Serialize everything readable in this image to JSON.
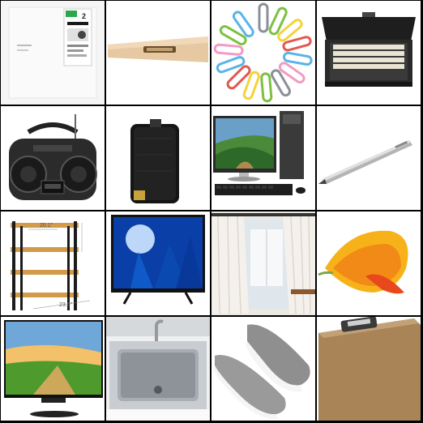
{
  "grid": {
    "tiles": [
      {
        "name": "sticky-notes-package",
        "label_text": "2"
      },
      {
        "name": "hammer-handle"
      },
      {
        "name": "paper-clips"
      },
      {
        "name": "file-box"
      },
      {
        "name": "boombox"
      },
      {
        "name": "speaker"
      },
      {
        "name": "desktop-computer"
      },
      {
        "name": "pen"
      },
      {
        "name": "shelf",
        "dimensions": [
          "20.1\"",
          "23.6\""
        ]
      },
      {
        "name": "television"
      },
      {
        "name": "curtains"
      },
      {
        "name": "calla-lily"
      },
      {
        "name": "monitor"
      },
      {
        "name": "kitchen-sink"
      },
      {
        "name": "slip-on-shoes"
      },
      {
        "name": "clipboard"
      }
    ]
  },
  "colors": {
    "grid_lines": "#000000",
    "tile_bg": "#ffffff"
  }
}
